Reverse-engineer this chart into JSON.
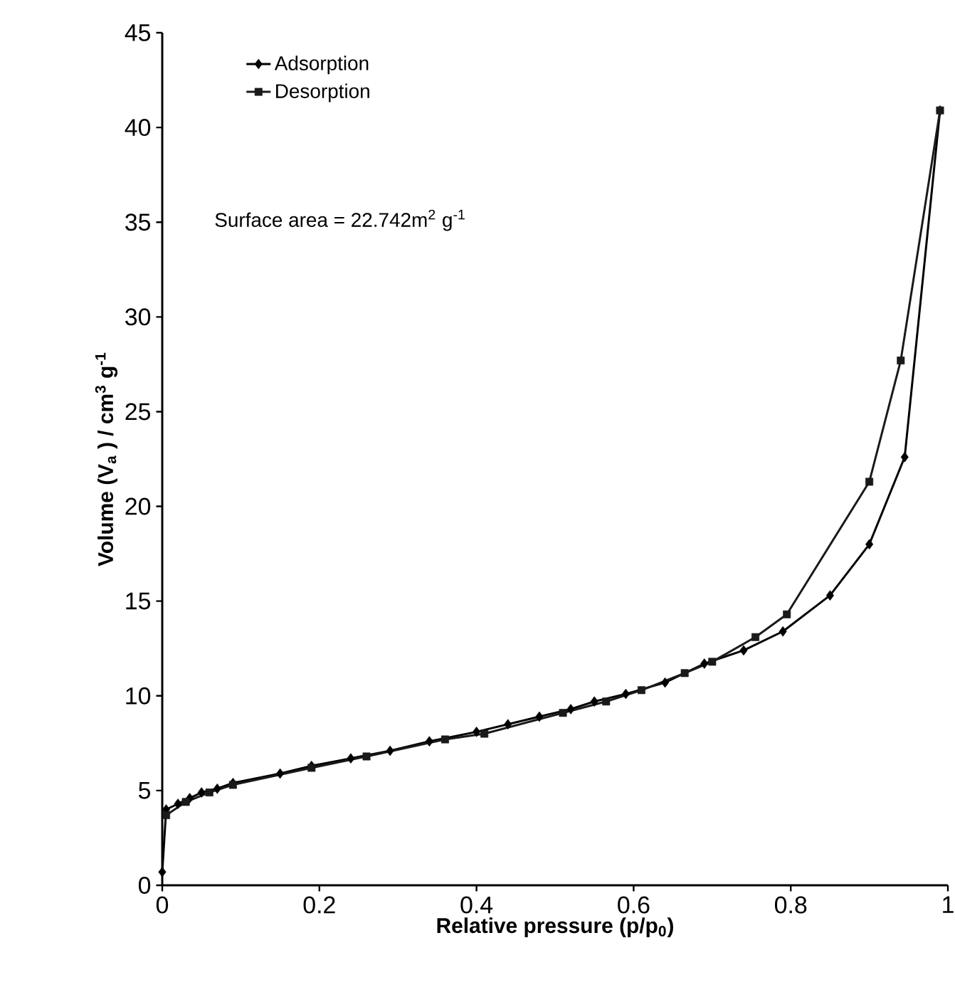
{
  "chart_data": {
    "type": "line",
    "xlabel": "Relative pressure (p/p$_{0}$)",
    "ylabel": "Volume (V$_{a}$ ) / cm$^{3}$ g$^{-1}$",
    "annotations": [
      "Surface area = 22.742m$^{2}$ g$^{-1}$"
    ],
    "series": [
      {
        "name": "Adsorption",
        "color": "#000000",
        "marker": "diamond",
        "x": [
          0,
          0.005,
          0.02,
          0.035,
          0.05,
          0.07,
          0.09,
          0.15,
          0.19,
          0.24,
          0.29,
          0.34,
          0.4,
          0.44,
          0.48,
          0.52,
          0.55,
          0.59,
          0.64,
          0.69,
          0.74,
          0.79,
          0.85,
          0.9,
          0.945,
          0.99
        ],
        "values": [
          0.7,
          4.0,
          4.3,
          4.6,
          4.9,
          5.1,
          5.4,
          5.9,
          6.3,
          6.7,
          7.1,
          7.6,
          8.1,
          8.5,
          8.9,
          9.3,
          9.7,
          10.1,
          10.7,
          11.7,
          12.4,
          13.4,
          15.3,
          18.0,
          22.6,
          40.9
        ]
      },
      {
        "name": "Desorption",
        "color": "#1a1a1a",
        "marker": "square",
        "x": [
          0.99,
          0.94,
          0.9,
          0.795,
          0.755,
          0.7,
          0.665,
          0.61,
          0.565,
          0.51,
          0.41,
          0.36,
          0.26,
          0.19,
          0.09,
          0.06,
          0.03,
          0.005
        ],
        "values": [
          40.9,
          27.7,
          21.3,
          14.3,
          13.1,
          11.8,
          11.2,
          10.3,
          9.7,
          9.1,
          8.0,
          7.7,
          6.8,
          6.2,
          5.3,
          4.9,
          4.4,
          3.7
        ]
      }
    ],
    "xlim": [
      0,
      1
    ],
    "ylim": [
      0,
      45
    ],
    "xticks": [
      0,
      0.2,
      0.4,
      0.6,
      0.8,
      1
    ],
    "yticks": [
      0,
      5,
      10,
      15,
      20,
      25,
      30,
      35,
      40,
      45
    ],
    "grid": false,
    "legend": "top left",
    "line_style": "solid"
  }
}
